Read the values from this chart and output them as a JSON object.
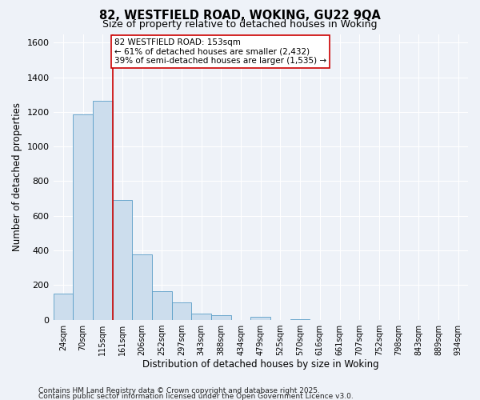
{
  "title": "82, WESTFIELD ROAD, WOKING, GU22 9QA",
  "subtitle": "Size of property relative to detached houses in Woking",
  "xlabel": "Distribution of detached houses by size in Woking",
  "ylabel": "Number of detached properties",
  "bar_color": "#ccdded",
  "bar_edge_color": "#5a9ec8",
  "background_color": "#eef2f8",
  "grid_color": "#ffffff",
  "bin_labels": [
    "24sqm",
    "70sqm",
    "115sqm",
    "161sqm",
    "206sqm",
    "252sqm",
    "297sqm",
    "343sqm",
    "388sqm",
    "434sqm",
    "479sqm",
    "525sqm",
    "570sqm",
    "616sqm",
    "661sqm",
    "707sqm",
    "752sqm",
    "798sqm",
    "843sqm",
    "889sqm",
    "934sqm"
  ],
  "bar_heights": [
    150,
    1185,
    1265,
    690,
    375,
    165,
    98,
    35,
    25,
    0,
    15,
    0,
    5,
    0,
    0,
    0,
    0,
    0,
    0,
    0,
    0
  ],
  "vline_x": 3,
  "vline_color": "#cc0000",
  "annotation_line1": "82 WESTFIELD ROAD: 153sqm",
  "annotation_line2": "← 61% of detached houses are smaller (2,432)",
  "annotation_line3": "39% of semi-detached houses are larger (1,535) →",
  "annotation_box_color": "#ffffff",
  "annotation_box_edge": "#cc0000",
  "ylim": [
    0,
    1650
  ],
  "yticks": [
    0,
    200,
    400,
    600,
    800,
    1000,
    1200,
    1400,
    1600
  ],
  "footer1": "Contains HM Land Registry data © Crown copyright and database right 2025.",
  "footer2": "Contains public sector information licensed under the Open Government Licence v3.0."
}
